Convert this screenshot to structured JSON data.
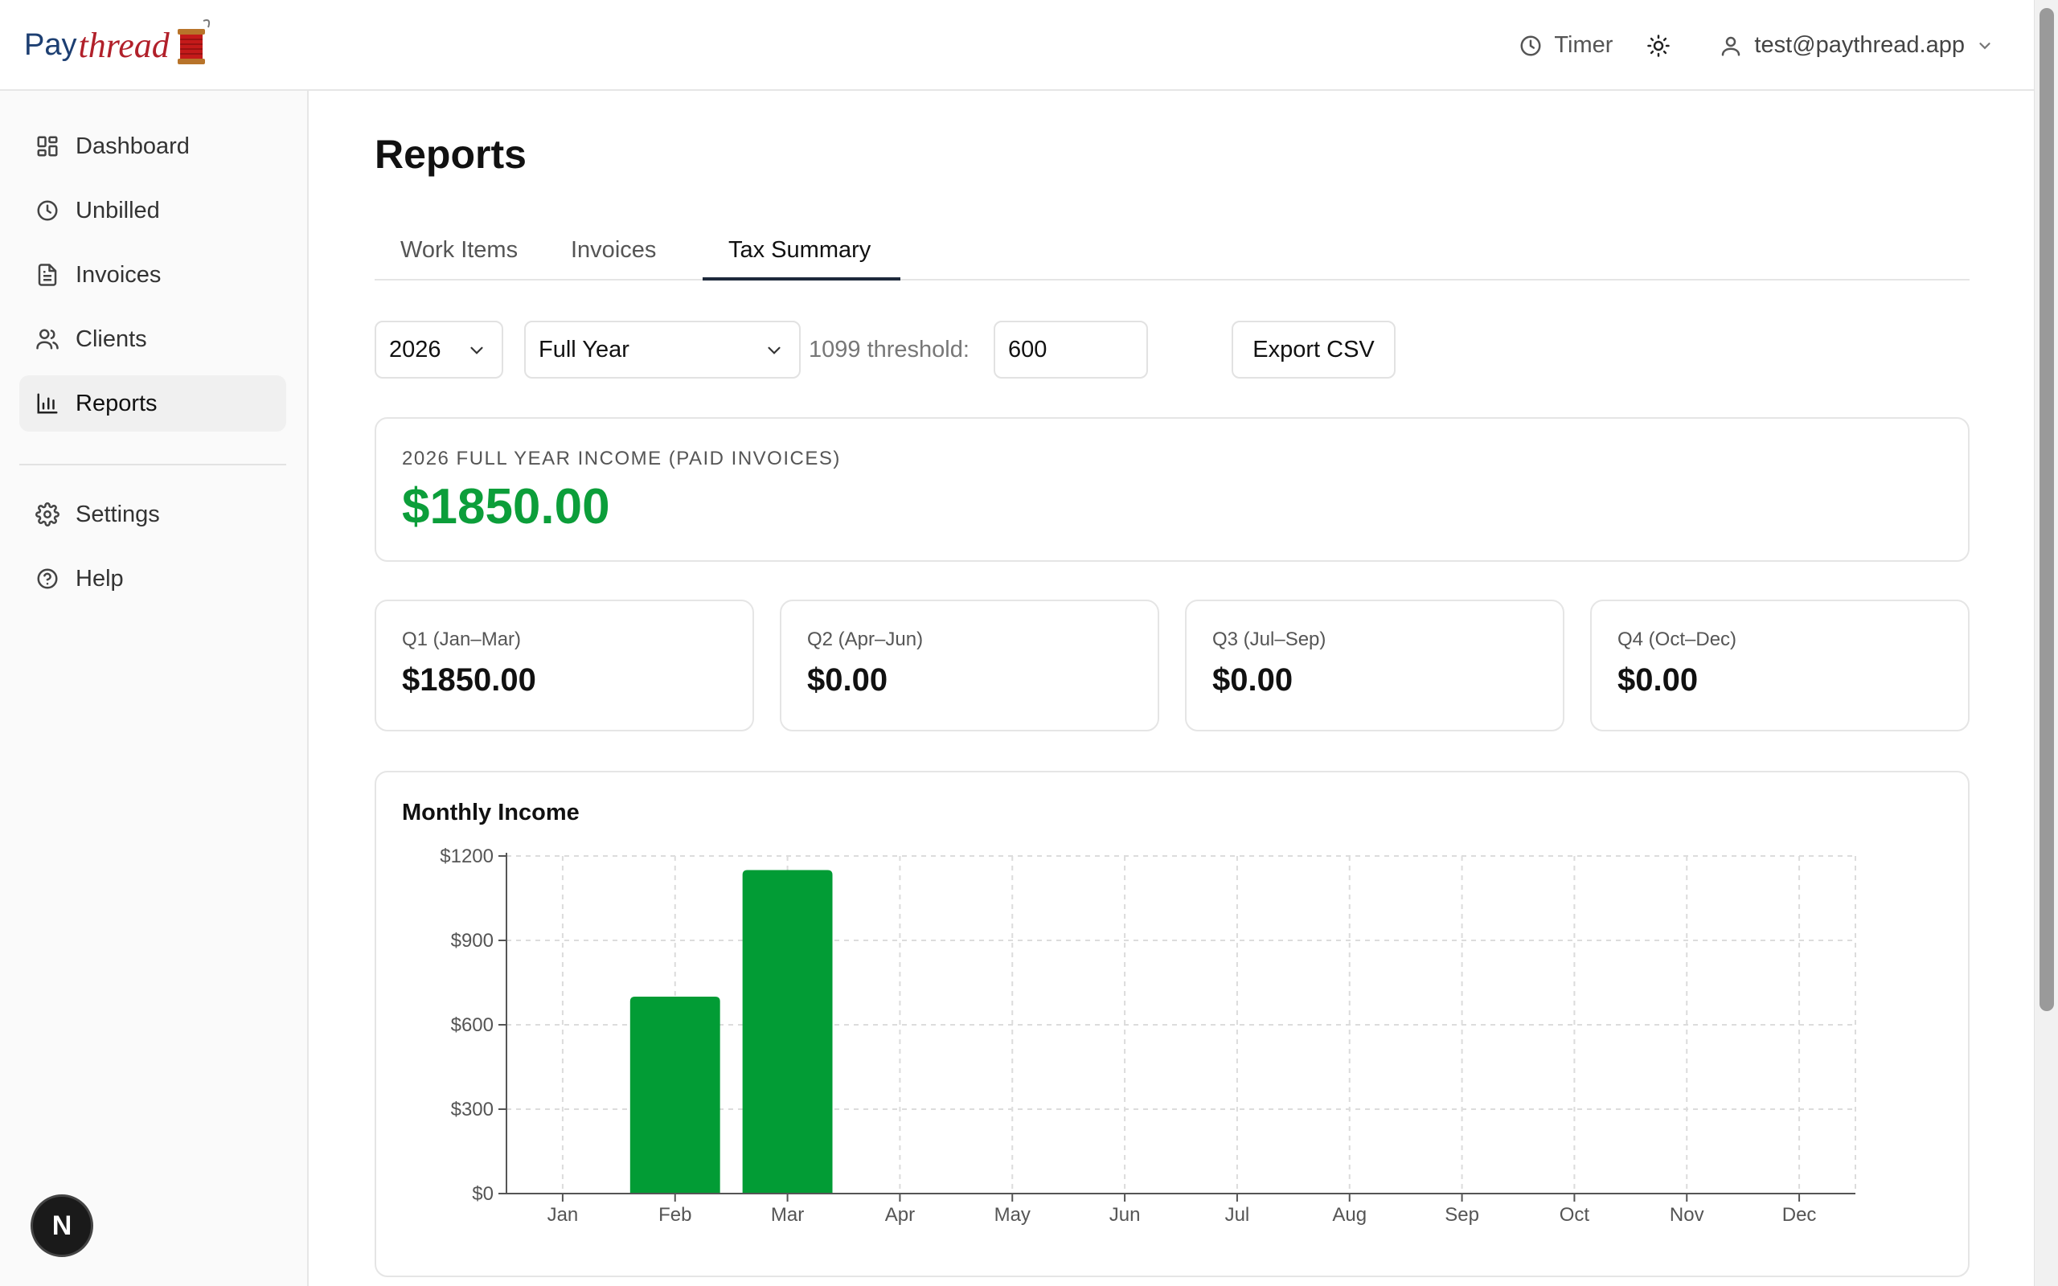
{
  "brand": {
    "pay": "Pay",
    "thread": "thread"
  },
  "header": {
    "timer_label": "Timer",
    "user_email": "test@paythread.app"
  },
  "sidebar": {
    "items": [
      {
        "label": "Dashboard",
        "icon": "dashboard-icon"
      },
      {
        "label": "Unbilled",
        "icon": "clock-icon"
      },
      {
        "label": "Invoices",
        "icon": "document-icon"
      },
      {
        "label": "Clients",
        "icon": "users-icon"
      },
      {
        "label": "Reports",
        "icon": "bar-chart-icon",
        "active": true
      },
      {
        "label": "Settings",
        "icon": "gear-icon"
      },
      {
        "label": "Help",
        "icon": "help-circle-icon"
      }
    ],
    "badge": "N"
  },
  "page": {
    "title": "Reports",
    "tabs": [
      {
        "label": "Work Items"
      },
      {
        "label": "Invoices"
      },
      {
        "label": "Tax Summary",
        "active": true
      }
    ]
  },
  "controls": {
    "year": "2026",
    "period": "Full Year",
    "threshold_label": "1099 threshold:",
    "threshold_value": "600",
    "export_label": "Export CSV"
  },
  "income": {
    "label": "2026 FULL YEAR INCOME (PAID INVOICES)",
    "value": "$1850.00",
    "color": "#0c9e3a"
  },
  "quarters": [
    {
      "label": "Q1 (Jan–Mar)",
      "value": "$1850.00"
    },
    {
      "label": "Q2 (Apr–Jun)",
      "value": "$0.00"
    },
    {
      "label": "Q3 (Jul–Sep)",
      "value": "$0.00"
    },
    {
      "label": "Q4 (Oct–Dec)",
      "value": "$0.00"
    }
  ],
  "chart_data": {
    "type": "bar",
    "title": "Monthly Income",
    "categories": [
      "Jan",
      "Feb",
      "Mar",
      "Apr",
      "May",
      "Jun",
      "Jul",
      "Aug",
      "Sep",
      "Oct",
      "Nov",
      "Dec"
    ],
    "values": [
      0,
      700,
      1150,
      0,
      0,
      0,
      0,
      0,
      0,
      0,
      0,
      0
    ],
    "y_ticks": [
      "$0",
      "$300",
      "$600",
      "$900",
      "$1200"
    ],
    "y_tick_values": [
      0,
      300,
      600,
      900,
      1200
    ],
    "ylim": [
      0,
      1200
    ],
    "xlabel": "",
    "ylabel": "",
    "grid": true,
    "bar_color": "#029c35"
  }
}
